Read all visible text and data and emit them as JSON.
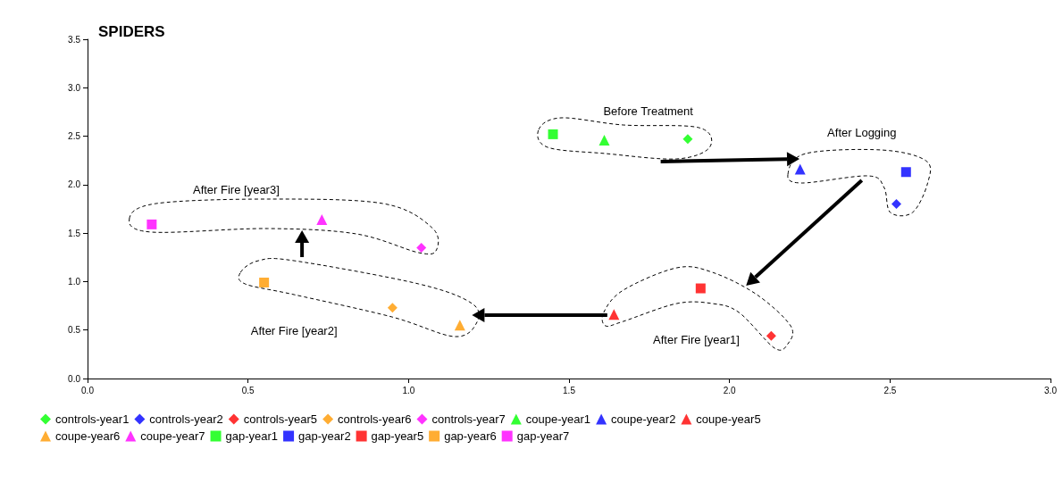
{
  "chart_data": {
    "type": "scatter",
    "title": "SPIDERS",
    "xlim": [
      0,
      3
    ],
    "ylim": [
      0,
      3.5
    ],
    "xticks": [
      {
        "value": 0,
        "label": "0.0"
      },
      {
        "value": 0.5,
        "label": "0.5"
      },
      {
        "value": 1,
        "label": "1.0"
      },
      {
        "value": 1.5,
        "label": "1.5"
      },
      {
        "value": 2,
        "label": "2.0"
      },
      {
        "value": 2.5,
        "label": "2.5"
      },
      {
        "value": 3,
        "label": "3.0"
      }
    ],
    "yticks": [
      {
        "value": 0,
        "label": "0.0"
      },
      {
        "value": 0.5,
        "label": "0.5"
      },
      {
        "value": 1,
        "label": "1.0"
      },
      {
        "value": 1.5,
        "label": "1.5"
      },
      {
        "value": 2,
        "label": "2.0"
      },
      {
        "value": 2.5,
        "label": "2.5"
      },
      {
        "value": 3,
        "label": "3.0"
      },
      {
        "value": 3.5,
        "label": "3.5"
      }
    ],
    "grid": false,
    "legend": "bottom",
    "series": [
      {
        "name": "controls-year1",
        "color": "#00ff00",
        "marker": "diamond",
        "x": [
          1.87
        ],
        "values": [
          2.47
        ]
      },
      {
        "name": "controls-year2",
        "color": "#0000ff",
        "marker": "diamond",
        "x": [
          2.52
        ],
        "values": [
          1.8
        ]
      },
      {
        "name": "controls-year5",
        "color": "#ff0000",
        "marker": "diamond",
        "x": [
          2.13
        ],
        "values": [
          0.44
        ]
      },
      {
        "name": "controls-year6",
        "color": "#ff9900",
        "marker": "diamond",
        "x": [
          0.95
        ],
        "values": [
          0.73
        ]
      },
      {
        "name": "controls-year7",
        "color": "#ff00ff",
        "marker": "diamond",
        "x": [
          1.04
        ],
        "values": [
          1.35
        ]
      },
      {
        "name": "coupe-year1",
        "color": "#00ff00",
        "marker": "triangle",
        "x": [
          1.61
        ],
        "values": [
          2.46
        ]
      },
      {
        "name": "coupe-year2",
        "color": "#0000ff",
        "marker": "triangle",
        "x": [
          2.22
        ],
        "values": [
          2.16
        ]
      },
      {
        "name": "coupe-year5",
        "color": "#ff0000",
        "marker": "triangle",
        "x": [
          1.64
        ],
        "values": [
          0.66
        ]
      },
      {
        "name": "coupe-year6",
        "color": "#ff9900",
        "marker": "triangle",
        "x": [
          1.16
        ],
        "values": [
          0.55
        ]
      },
      {
        "name": "coupe-year7",
        "color": "#ff00ff",
        "marker": "triangle",
        "x": [
          0.73
        ],
        "values": [
          1.64
        ]
      },
      {
        "name": "gap-year1",
        "color": "#00ff00",
        "marker": "square",
        "x": [
          1.45
        ],
        "values": [
          2.52
        ]
      },
      {
        "name": "gap-year2",
        "color": "#0000ff",
        "marker": "square",
        "x": [
          2.55
        ],
        "values": [
          2.13
        ]
      },
      {
        "name": "gap-year5",
        "color": "#ff0000",
        "marker": "square",
        "x": [
          1.91
        ],
        "values": [
          0.93
        ]
      },
      {
        "name": "gap-year6",
        "color": "#ff9900",
        "marker": "square",
        "x": [
          0.55
        ],
        "values": [
          0.99
        ]
      },
      {
        "name": "gap-year7",
        "color": "#ff00ff",
        "marker": "square",
        "x": [
          0.2
        ],
        "values": [
          1.59
        ]
      }
    ],
    "annotations": [
      "Before Treatment",
      "After Logging",
      "After Fire [year3]",
      "After Fire [year2]",
      "After Fire [year1]"
    ]
  }
}
